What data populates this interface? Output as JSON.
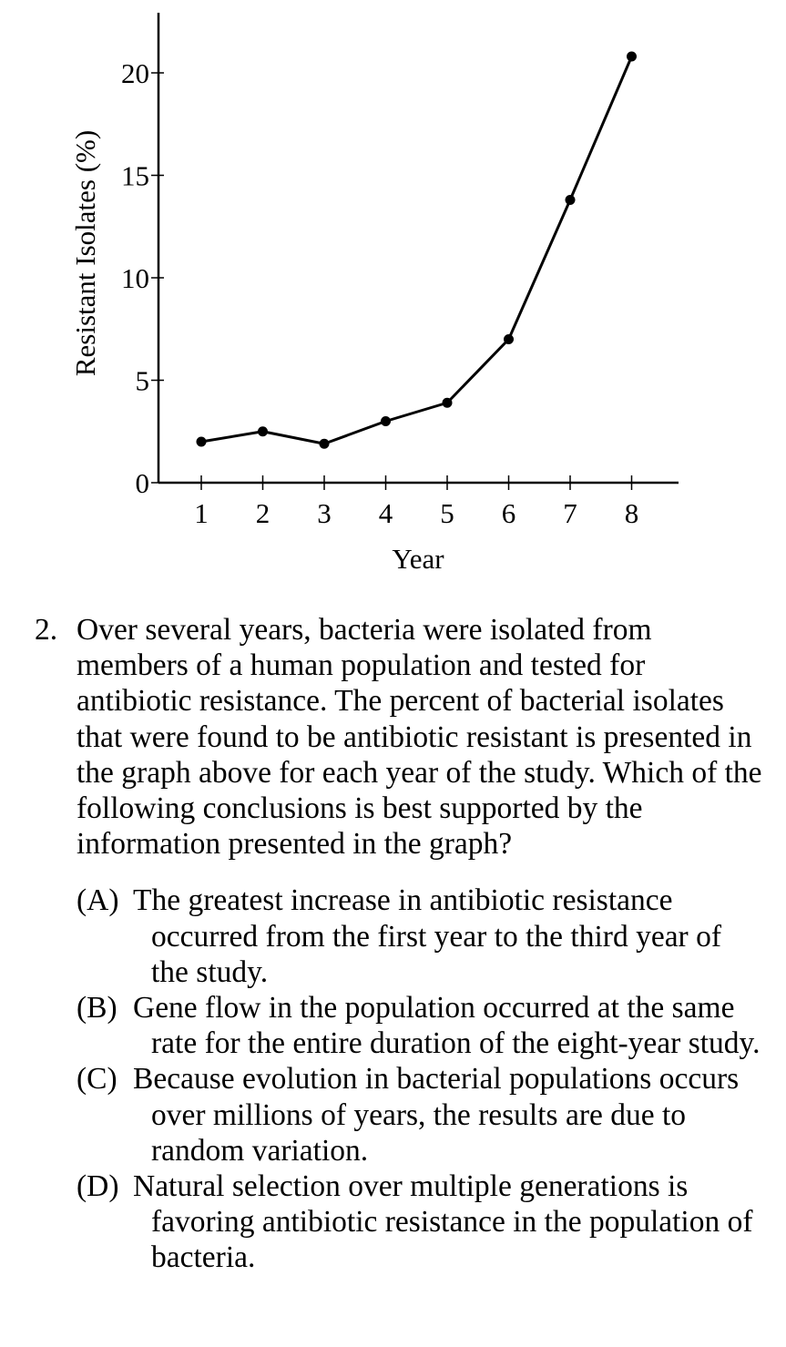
{
  "chart_data": {
    "type": "line",
    "ylabel": "Resistant Isolates (%)",
    "xlabel": "Year",
    "x": [
      1,
      2,
      3,
      4,
      5,
      6,
      7,
      8
    ],
    "y": [
      2.0,
      2.5,
      1.9,
      3.0,
      3.9,
      7.0,
      13.8,
      20.8
    ],
    "yticks": [
      0,
      5,
      10,
      15,
      20
    ],
    "xticks": [
      1,
      2,
      3,
      4,
      5,
      6,
      7,
      8
    ],
    "ylim": [
      0,
      22.5
    ],
    "grid": false
  },
  "question": {
    "number": "2.",
    "text": "Over several years, bacteria were isolated from members of a human population and tested for antibiotic resistance. The percent of bacterial isolates that were found to be antibiotic resistant is presented in the graph above for each year of the study. Which of the following conclusions is best supported by the information presented in the graph?",
    "options": [
      {
        "letter": "(A)",
        "text": "The greatest increase in antibiotic resistance occurred from the first year to the third year of the study."
      },
      {
        "letter": "(B)",
        "text": "Gene flow in the population occurred at the same rate for the entire duration of the eight-year study."
      },
      {
        "letter": "(C)",
        "text": "Because evolution in bacterial populations occurs over millions of years, the results are due to random variation."
      },
      {
        "letter": "(D)",
        "text": "Natural selection over multiple generations is favoring antibiotic resistance in the population of bacteria."
      }
    ]
  }
}
